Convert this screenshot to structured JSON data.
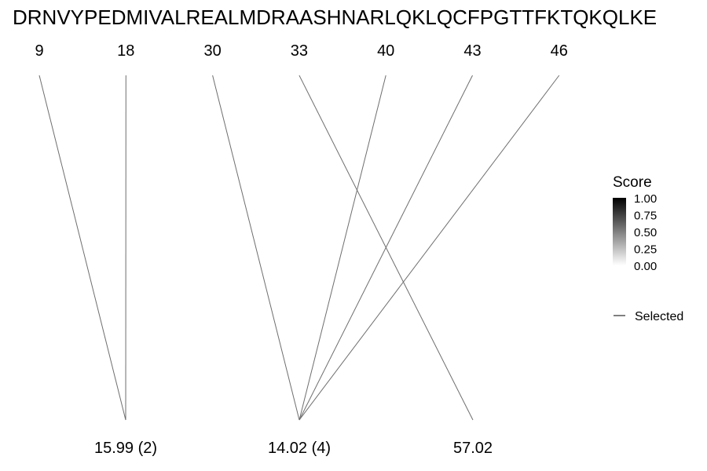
{
  "sequence": "DRNVYPEDMIVALREALMDRAASHNARLQKLQCFPGTTFKTQKQLKE",
  "positions": [
    "9",
    "18",
    "30",
    "33",
    "40",
    "43",
    "46"
  ],
  "masses": [
    "15.99 (2)",
    "14.02 (4)",
    "57.02"
  ],
  "links": [
    {
      "from": "9",
      "to": "15.99 (2)"
    },
    {
      "from": "18",
      "to": "15.99 (2)"
    },
    {
      "from": "30",
      "to": "14.02 (4)"
    },
    {
      "from": "40",
      "to": "14.02 (4)"
    },
    {
      "from": "43",
      "to": "14.02 (4)"
    },
    {
      "from": "46",
      "to": "14.02 (4)"
    },
    {
      "from": "33",
      "to": "57.02"
    }
  ],
  "legend": {
    "title": "Score",
    "ticks": [
      "1.00",
      "0.75",
      "0.50",
      "0.25",
      "0.00"
    ],
    "gradient_top": "#000000",
    "gradient_bottom": "#ffffff",
    "selected_label": "Selected"
  },
  "colors": {
    "line": "#6e6e6e"
  }
}
